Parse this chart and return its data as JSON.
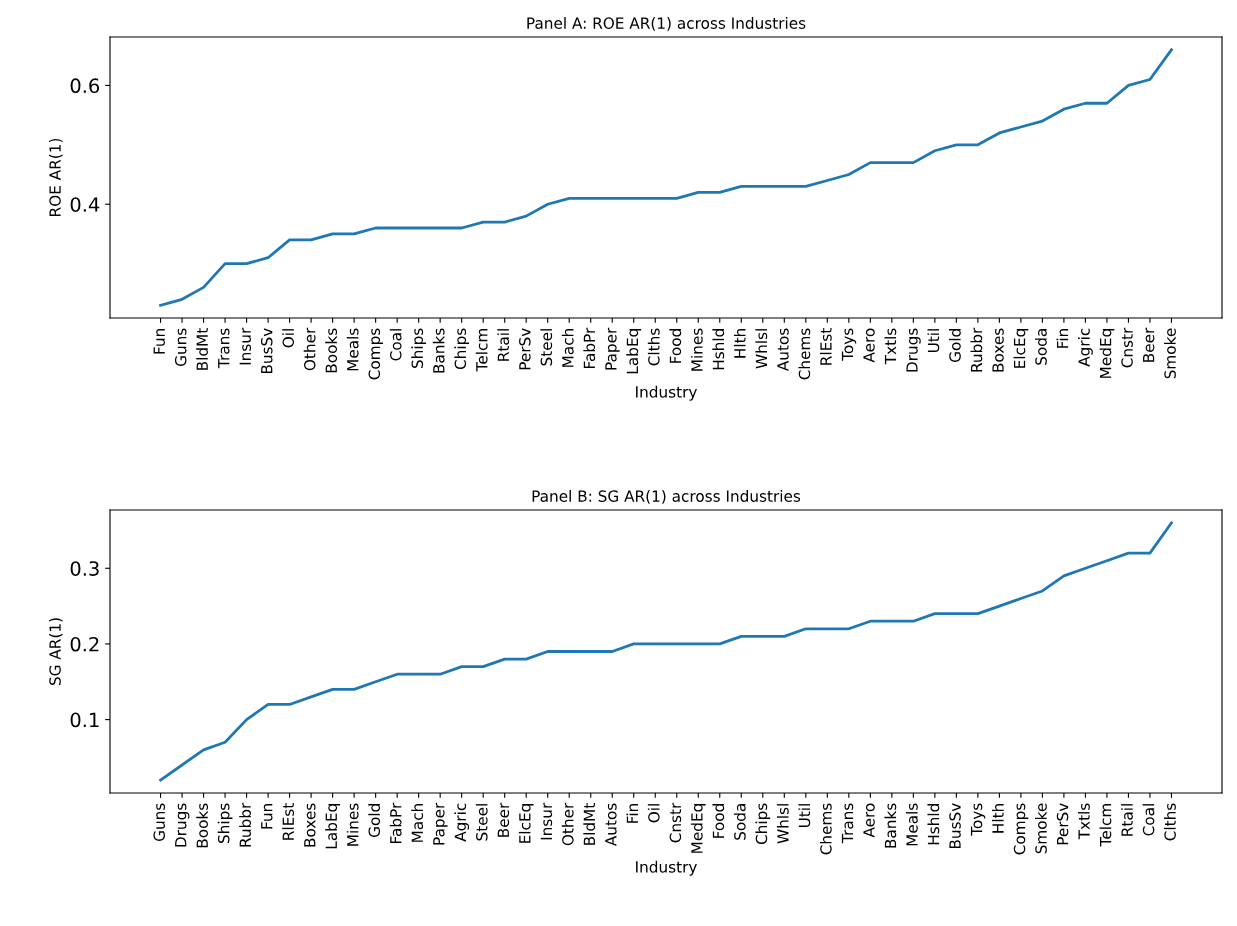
{
  "chart_data": [
    {
      "type": "line",
      "title": "Panel A: ROE AR(1) across Industries",
      "xlabel": "Industry",
      "ylabel": "ROE AR(1)",
      "categories": [
        "Fun",
        "Guns",
        "BldMt",
        "Trans",
        "Insur",
        "BusSv",
        "Oil",
        "Other",
        "Books",
        "Meals",
        "Comps",
        "Coal",
        "Ships",
        "Banks",
        "Chips",
        "Telcm",
        "Rtail",
        "PerSv",
        "Steel",
        "Mach",
        "FabPr",
        "Paper",
        "LabEq",
        "Clths",
        "Food",
        "Mines",
        "Hshld",
        "Hlth",
        "Whlsl",
        "Autos",
        "Chems",
        "RlEst",
        "Toys",
        "Aero",
        "Txtls",
        "Drugs",
        "Util",
        "Gold",
        "Rubbr",
        "Boxes",
        "ElcEq",
        "Soda",
        "Fin",
        "Agric",
        "MedEq",
        "Cnstr",
        "Beer",
        "Smoke"
      ],
      "series": [
        {
          "color": "#1f77b4",
          "values": [
            0.23,
            0.24,
            0.26,
            0.3,
            0.3,
            0.31,
            0.34,
            0.34,
            0.35,
            0.35,
            0.36,
            0.36,
            0.36,
            0.36,
            0.36,
            0.37,
            0.37,
            0.38,
            0.4,
            0.41,
            0.41,
            0.41,
            0.41,
            0.41,
            0.41,
            0.42,
            0.42,
            0.43,
            0.43,
            0.43,
            0.43,
            0.44,
            0.45,
            0.47,
            0.47,
            0.47,
            0.49,
            0.5,
            0.5,
            0.52,
            0.53,
            0.54,
            0.56,
            0.57,
            0.57,
            0.6,
            0.61,
            0.66
          ]
        }
      ],
      "ylim": [
        0.2085,
        0.6815
      ],
      "yticks": [
        0.4,
        0.6
      ],
      "grid": false,
      "marker": "none",
      "line_style": "solid"
    },
    {
      "type": "line",
      "title": "Panel B: SG AR(1) across Industries",
      "xlabel": "Industry",
      "ylabel": "SG AR(1)",
      "categories": [
        "Guns",
        "Drugs",
        "Books",
        "Ships",
        "Rubbr",
        "Fun",
        "RlEst",
        "Boxes",
        "LabEq",
        "Mines",
        "Gold",
        "FabPr",
        "Mach",
        "Paper",
        "Agric",
        "Steel",
        "Beer",
        "ElcEq",
        "Insur",
        "Other",
        "BldMt",
        "Autos",
        "Fin",
        "Oil",
        "Cnstr",
        "MedEq",
        "Food",
        "Soda",
        "Chips",
        "Whlsl",
        "Util",
        "Chems",
        "Trans",
        "Aero",
        "Banks",
        "Meals",
        "Hshld",
        "BusSv",
        "Toys",
        "Hlth",
        "Comps",
        "Smoke",
        "PerSv",
        "Txtls",
        "Telcm",
        "Rtail",
        "Coal",
        "Clths"
      ],
      "series": [
        {
          "color": "#1f77b4",
          "values": [
            0.02,
            0.04,
            0.06,
            0.07,
            0.1,
            0.12,
            0.12,
            0.13,
            0.14,
            0.14,
            0.15,
            0.16,
            0.16,
            0.16,
            0.17,
            0.17,
            0.18,
            0.18,
            0.19,
            0.19,
            0.19,
            0.19,
            0.2,
            0.2,
            0.2,
            0.2,
            0.2,
            0.21,
            0.21,
            0.21,
            0.22,
            0.22,
            0.22,
            0.23,
            0.23,
            0.23,
            0.24,
            0.24,
            0.24,
            0.25,
            0.26,
            0.27,
            0.29,
            0.3,
            0.31,
            0.32,
            0.32,
            0.36
          ]
        }
      ],
      "ylim": [
        0.003,
        0.377
      ],
      "yticks": [
        0.1,
        0.2,
        0.3
      ],
      "grid": false,
      "marker": "none",
      "line_style": "solid"
    }
  ]
}
